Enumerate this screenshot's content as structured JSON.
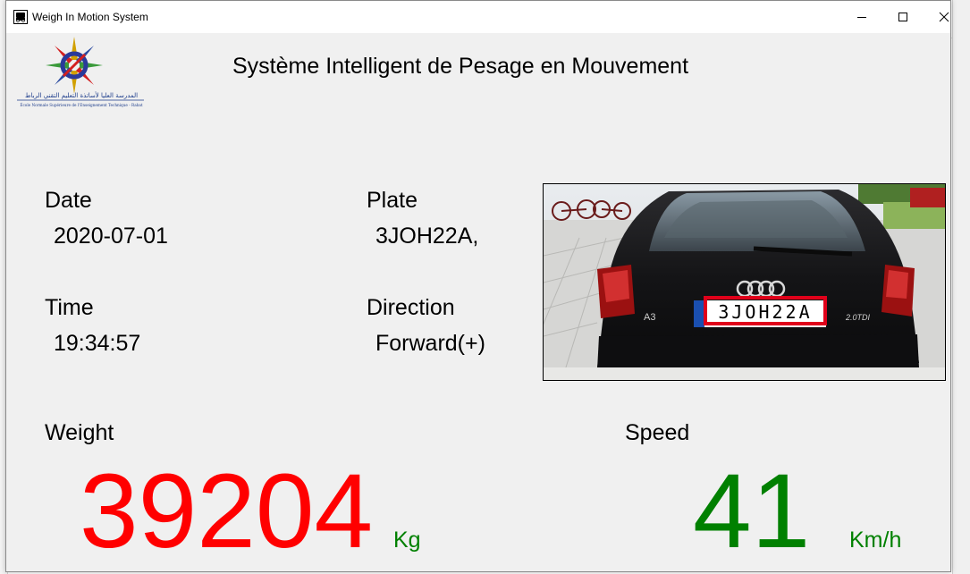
{
  "window": {
    "title": "Weigh In Motion System"
  },
  "header": {
    "app_title": "Système Intelligent de Pesage en Mouvement",
    "logo_text_arabic": "المدرسة العليا لأساتذة التعليم التقني الرباط",
    "logo_text_french": "École Normale Supérieure de l'Enseignement Technique - Rabat"
  },
  "fields": {
    "date_label": "Date",
    "date_value": "2020-07-01",
    "time_label": "Time",
    "time_value": "19:34:57",
    "plate_label": "Plate",
    "plate_value": "3JOH22A,",
    "direction_label": "Direction",
    "direction_value": "Forward(+)"
  },
  "photo": {
    "plate_text": "3JOH22A",
    "model_badge": "A3",
    "engine_badge": "2.0TDI",
    "plate_box_color": "#e0001a"
  },
  "weight": {
    "label": "Weight",
    "value": "39204",
    "unit": "Kg",
    "color": "#ff0000"
  },
  "speed": {
    "label": "Speed",
    "value": "41",
    "unit": "Km/h",
    "color": "#008000"
  }
}
